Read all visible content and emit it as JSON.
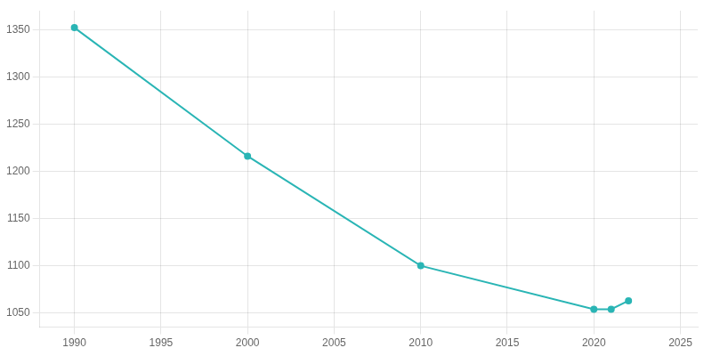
{
  "chart_data": {
    "type": "line",
    "x": [
      1990,
      2000,
      2010,
      2020,
      2021,
      2022
    ],
    "values": [
      1352,
      1216,
      1100,
      1054,
      1054,
      1063
    ],
    "color": "#2ab5b5",
    "marker": "circle",
    "xlim": [
      1988,
      2026
    ],
    "xticks": [
      1990,
      1995,
      2000,
      2005,
      2010,
      2015,
      2020,
      2025
    ],
    "ylim": [
      1035,
      1370
    ],
    "yticks": [
      1050,
      1100,
      1150,
      1200,
      1250,
      1300,
      1350
    ],
    "grid": true
  }
}
